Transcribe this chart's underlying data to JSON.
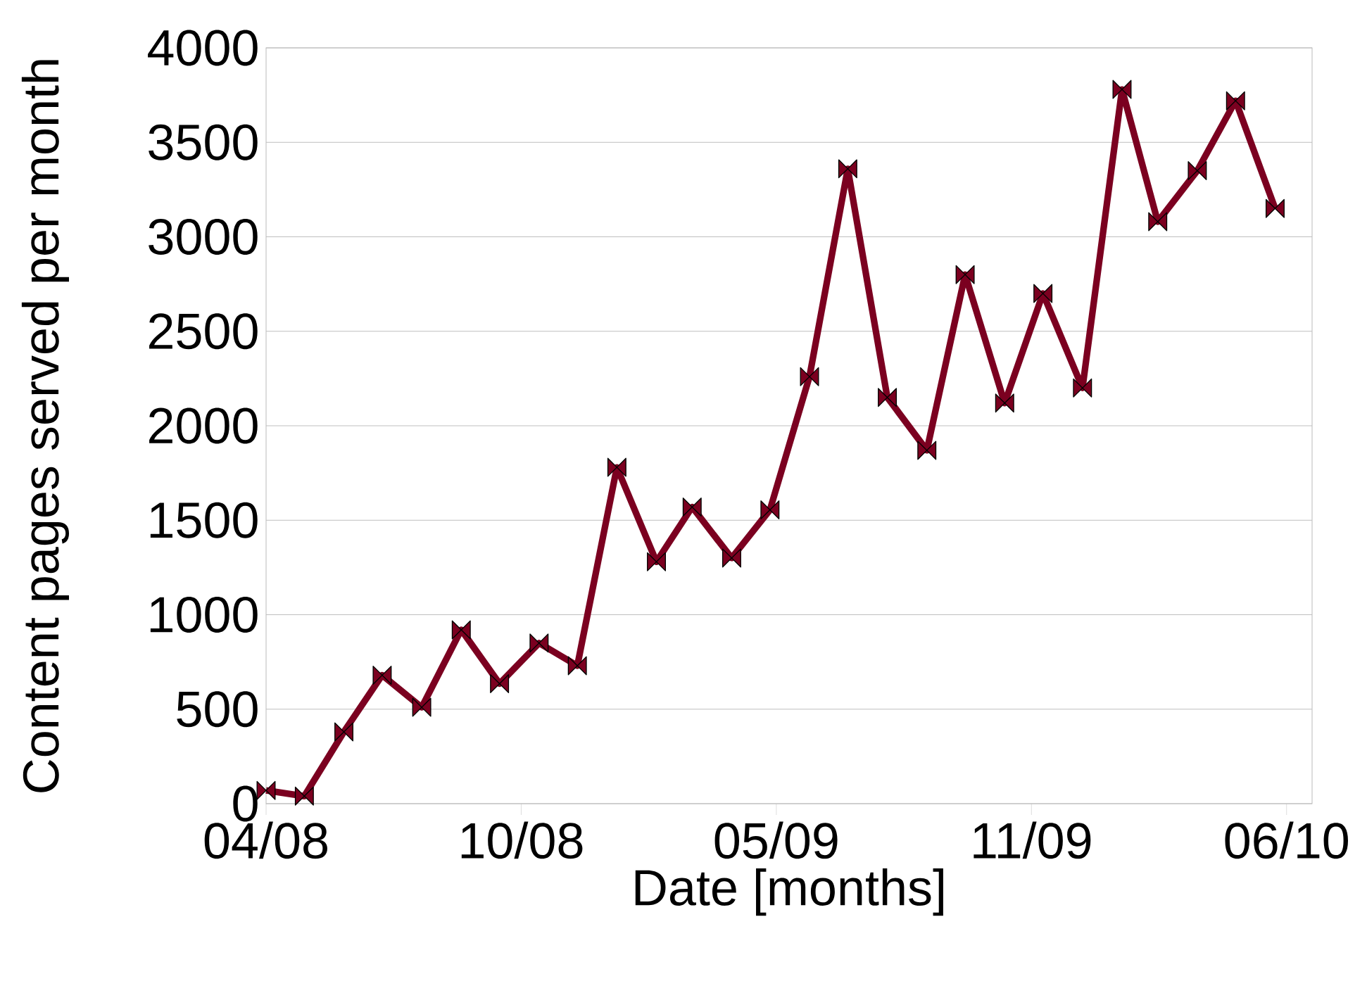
{
  "chart_data": {
    "type": "line",
    "xlabel": "Date [months]",
    "ylabel": "Content pages served per month",
    "x": [
      "2008-04",
      "2008-05",
      "2008-06",
      "2008-07",
      "2008-08",
      "2008-09",
      "2008-10",
      "2008-11",
      "2008-12",
      "2009-01",
      "2009-02",
      "2009-03",
      "2009-04",
      "2009-05",
      "2009-06",
      "2009-07",
      "2009-08",
      "2009-09",
      "2009-10",
      "2009-11",
      "2009-12",
      "2010-01",
      "2010-02",
      "2010-03",
      "2010-04",
      "2010-05",
      "2010-06"
    ],
    "series": [
      {
        "color": "#7b0020",
        "values": [
          70,
          40,
          380,
          680,
          510,
          920,
          635,
          850,
          730,
          1780,
          1280,
          1570,
          1300,
          1555,
          2260,
          3360,
          2150,
          1870,
          2800,
          2120,
          2700,
          2200,
          3780,
          3080,
          3350,
          3720,
          3150
        ]
      }
    ],
    "xlim": [
      "2008-04-01",
      "2010-06-30"
    ],
    "xticks": [
      {
        "value": "2008-04-01",
        "label": "04/08"
      },
      {
        "value": "2008-10-18",
        "label": "10/08"
      },
      {
        "value": "2009-05-06",
        "label": "05/09"
      },
      {
        "value": "2009-11-22",
        "label": "11/09"
      },
      {
        "value": "2010-06-10",
        "label": "06/10"
      }
    ],
    "ylim": [
      0,
      4000
    ],
    "yticks": [
      0,
      500,
      1000,
      1500,
      2000,
      2500,
      3000,
      3500,
      4000
    ],
    "grid": "y",
    "marker": "diamond",
    "line_style": "solid",
    "legend": false
  }
}
